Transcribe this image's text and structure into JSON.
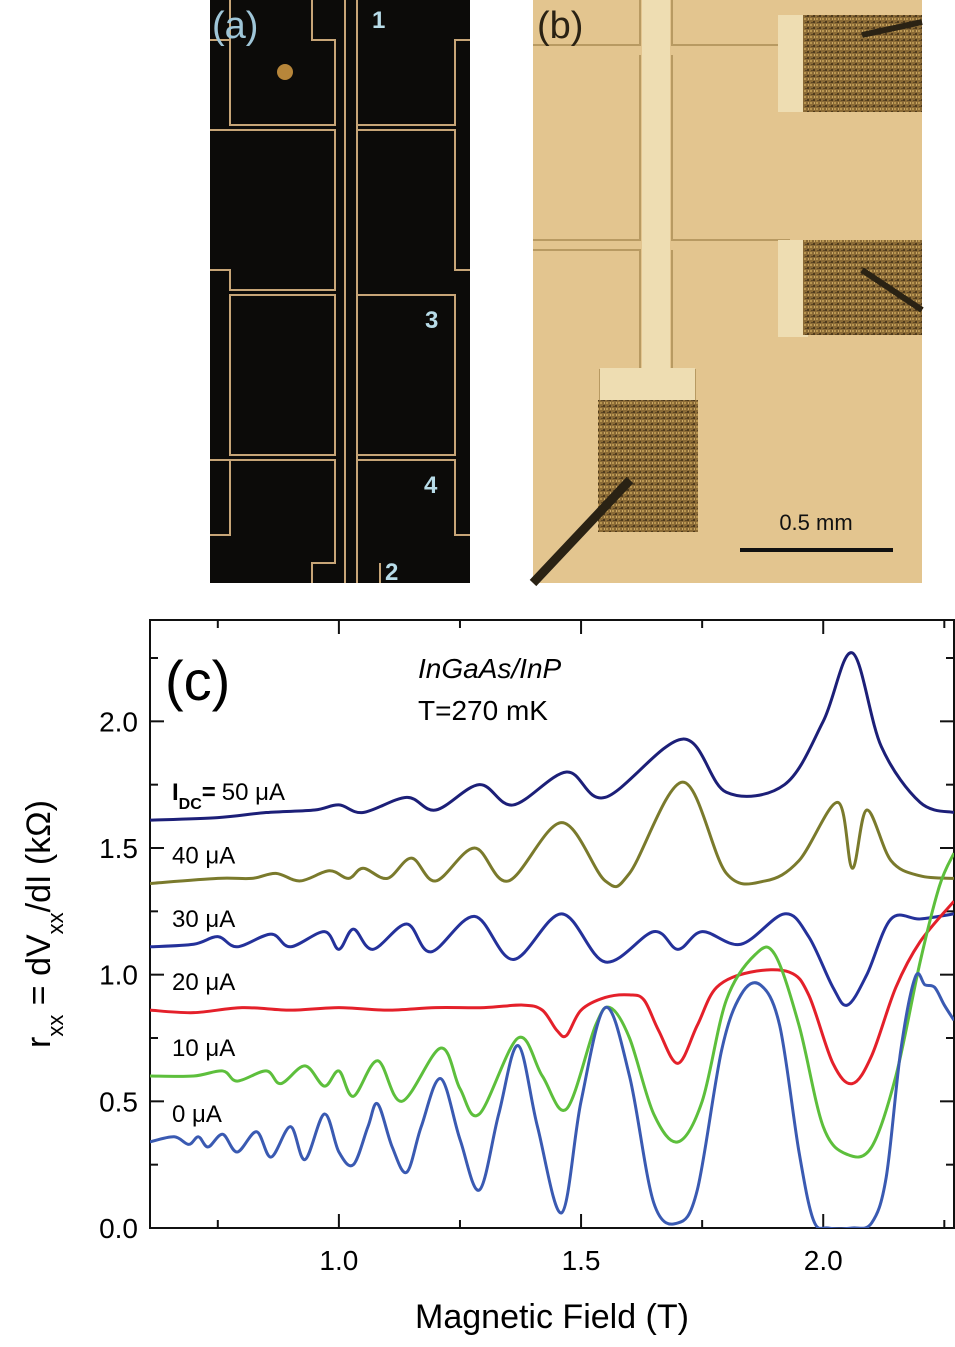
{
  "panels": [
    {
      "label": "(a)",
      "markers": [
        "1",
        "3",
        "4",
        "2"
      ]
    },
    {
      "label": "(b)",
      "scale_bar": "0.5 mm"
    }
  ],
  "chart_data": {
    "type": "line",
    "panel_label": "(c)",
    "annotations": [
      "InGaAs/InP",
      "T=270 mK"
    ],
    "current_label": {
      "symbol": "I",
      "subscript": "DC",
      "sign": "="
    },
    "xlabel": "Magnetic Field (T)",
    "ylabel": [
      {
        "text": "r"
      },
      {
        "text": "xx",
        "sub": true
      },
      {
        "text": " = dV"
      },
      {
        "text": "xx",
        "sub": true
      },
      {
        "text": "/dI  (kΩ)"
      }
    ],
    "xlim": [
      0.61,
      2.27
    ],
    "ylim": [
      0,
      2.4
    ],
    "xticks": [
      {
        "value": 1,
        "label": "1.0"
      },
      1.5,
      {
        "value": 2,
        "label": "2.0"
      }
    ],
    "yticks": [
      {
        "value": 0,
        "label": "0.0"
      },
      0.5,
      {
        "value": 1,
        "label": "1.0"
      },
      1.5,
      {
        "value": 2,
        "label": "2.0"
      }
    ],
    "xminorticks": [
      0.75,
      1.25,
      1.75,
      2.25
    ],
    "yminorticks": [
      0.25,
      0.75,
      1.25,
      1.75,
      2.25
    ],
    "series": [
      {
        "name": "50 μA",
        "color": "#1c1f78",
        "x": [
          0.61,
          0.75,
          0.85,
          0.95,
          1.0,
          1.05,
          1.14,
          1.2,
          1.29,
          1.36,
          1.47,
          1.55,
          1.71,
          1.8,
          1.92,
          2.0,
          2.06,
          2.12,
          2.2,
          2.27
        ],
        "values": [
          1.61,
          1.62,
          1.64,
          1.65,
          1.67,
          1.64,
          1.7,
          1.65,
          1.75,
          1.67,
          1.8,
          1.7,
          1.93,
          1.72,
          1.75,
          2.0,
          2.27,
          1.9,
          1.68,
          1.64
        ]
      },
      {
        "name": "40 μA",
        "color": "#7a7a2c",
        "x": [
          0.61,
          0.75,
          0.82,
          0.87,
          0.92,
          0.98,
          1.02,
          1.05,
          1.1,
          1.15,
          1.2,
          1.28,
          1.35,
          1.46,
          1.55,
          1.6,
          1.71,
          1.8,
          1.88,
          1.95,
          2.03,
          2.06,
          2.09,
          2.14,
          2.2,
          2.27
        ],
        "values": [
          1.36,
          1.38,
          1.38,
          1.4,
          1.37,
          1.41,
          1.38,
          1.42,
          1.38,
          1.46,
          1.37,
          1.5,
          1.37,
          1.6,
          1.37,
          1.4,
          1.76,
          1.4,
          1.37,
          1.45,
          1.68,
          1.42,
          1.65,
          1.45,
          1.39,
          1.38
        ]
      },
      {
        "name": "30 μA",
        "color": "#24319a",
        "x": [
          0.61,
          0.7,
          0.75,
          0.79,
          0.86,
          0.9,
          0.97,
          1.0,
          1.03,
          1.07,
          1.14,
          1.19,
          1.28,
          1.36,
          1.46,
          1.55,
          1.65,
          1.7,
          1.75,
          1.83,
          1.92,
          1.97,
          2.02,
          2.05,
          2.09,
          2.14,
          2.2,
          2.27
        ],
        "values": [
          1.11,
          1.12,
          1.15,
          1.11,
          1.16,
          1.11,
          1.17,
          1.1,
          1.18,
          1.1,
          1.2,
          1.09,
          1.23,
          1.06,
          1.24,
          1.05,
          1.17,
          1.1,
          1.17,
          1.12,
          1.24,
          1.15,
          0.95,
          0.88,
          1.0,
          1.22,
          1.22,
          1.24
        ]
      },
      {
        "name": "20 μA",
        "color": "#e4202a",
        "x": [
          0.61,
          0.7,
          0.8,
          0.9,
          1.0,
          1.1,
          1.2,
          1.3,
          1.38,
          1.42,
          1.45,
          1.47,
          1.5,
          1.55,
          1.6,
          1.63,
          1.66,
          1.7,
          1.74,
          1.78,
          1.85,
          1.93,
          1.97,
          2.02,
          2.06,
          2.1,
          2.15,
          2.2,
          2.27
        ],
        "values": [
          0.86,
          0.85,
          0.87,
          0.86,
          0.87,
          0.86,
          0.87,
          0.87,
          0.88,
          0.86,
          0.78,
          0.76,
          0.86,
          0.91,
          0.92,
          0.9,
          0.78,
          0.65,
          0.8,
          0.95,
          1.01,
          1.01,
          0.92,
          0.65,
          0.57,
          0.68,
          0.95,
          1.13,
          1.29
        ]
      },
      {
        "name": "10 μA",
        "color": "#5dbf3c",
        "x": [
          0.61,
          0.7,
          0.76,
          0.79,
          0.85,
          0.88,
          0.93,
          0.97,
          1.0,
          1.03,
          1.08,
          1.13,
          1.21,
          1.25,
          1.29,
          1.37,
          1.42,
          1.47,
          1.53,
          1.56,
          1.6,
          1.65,
          1.7,
          1.75,
          1.8,
          1.86,
          1.9,
          1.95,
          2.0,
          2.05,
          2.1,
          2.15,
          2.2,
          2.24,
          2.27
        ],
        "values": [
          0.6,
          0.6,
          0.62,
          0.58,
          0.62,
          0.57,
          0.64,
          0.56,
          0.62,
          0.52,
          0.66,
          0.5,
          0.71,
          0.55,
          0.45,
          0.75,
          0.6,
          0.47,
          0.8,
          0.87,
          0.75,
          0.45,
          0.34,
          0.5,
          0.9,
          1.08,
          1.08,
          0.8,
          0.4,
          0.29,
          0.32,
          0.6,
          1.05,
          1.35,
          1.48
        ]
      },
      {
        "name": "0 μA",
        "color": "#3a5ab2",
        "x": [
          0.61,
          0.66,
          0.69,
          0.71,
          0.73,
          0.76,
          0.79,
          0.83,
          0.86,
          0.9,
          0.93,
          0.97,
          1.0,
          1.03,
          1.06,
          1.08,
          1.11,
          1.14,
          1.17,
          1.21,
          1.25,
          1.29,
          1.33,
          1.37,
          1.41,
          1.46,
          1.5,
          1.55,
          1.6,
          1.65,
          1.7,
          1.74,
          1.79,
          1.83,
          1.87,
          1.91,
          1.95,
          1.98,
          2.01,
          2.06,
          2.1,
          2.13,
          2.16,
          2.19,
          2.21,
          2.23,
          2.25,
          2.27
        ],
        "values": [
          0.34,
          0.36,
          0.33,
          0.36,
          0.32,
          0.37,
          0.3,
          0.38,
          0.28,
          0.4,
          0.27,
          0.45,
          0.3,
          0.25,
          0.4,
          0.49,
          0.32,
          0.22,
          0.4,
          0.59,
          0.35,
          0.15,
          0.45,
          0.72,
          0.4,
          0.06,
          0.5,
          0.87,
          0.6,
          0.1,
          0.02,
          0.15,
          0.7,
          0.92,
          0.96,
          0.8,
          0.3,
          0.03,
          0.0,
          0.0,
          0.02,
          0.2,
          0.7,
          0.99,
          0.96,
          0.95,
          0.88,
          0.82
        ]
      }
    ]
  }
}
